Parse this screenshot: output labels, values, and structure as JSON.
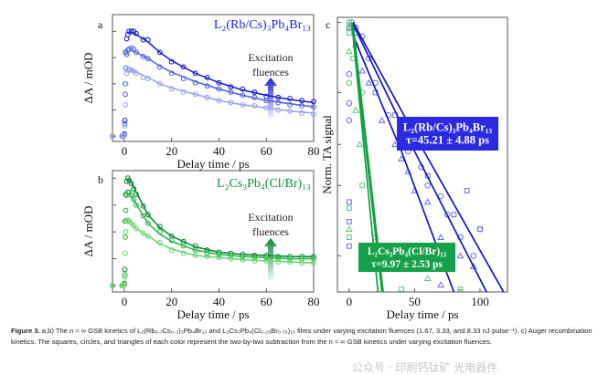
{
  "chart_data": [
    {
      "panel_label": "a",
      "type": "scatter",
      "title": "L₂(Rb/Cs)₃Pb₄Br₁₃",
      "xlabel": "Delay time / ps",
      "ylabel": "ΔA / mOD",
      "xlim": [
        -5,
        80
      ],
      "ylim": [
        -0.05,
        1.16
      ],
      "xticks": [
        0,
        20,
        40,
        60,
        80
      ],
      "annotation": [
        "Excitation",
        "fluences"
      ],
      "annotation_arrow": "up",
      "x": [
        -5,
        -1,
        -0.5,
        0,
        0.2,
        0.4,
        0.6,
        1,
        1.5,
        2,
        3,
        4,
        5,
        8,
        10,
        15,
        20,
        25,
        30,
        35,
        40,
        45,
        50,
        55,
        60,
        65,
        70,
        75,
        80
      ],
      "fit_x": [
        2,
        5,
        10,
        15,
        20,
        30,
        40,
        50,
        60,
        70,
        80
      ],
      "series": [
        {
          "color": "#1c22d6",
          "values": [
            0,
            0,
            0,
            0.02,
            0.15,
            0.5,
            0.8,
            0.93,
            0.97,
            1.0,
            1.0,
            1.0,
            0.98,
            0.92,
            0.92,
            0.8,
            0.71,
            0.66,
            0.6,
            0.56,
            0.51,
            0.47,
            0.45,
            0.42,
            0.38,
            0.37,
            0.36,
            0.34,
            0.33
          ],
          "fit": [
            1.0,
            0.97,
            0.9,
            0.8,
            0.72,
            0.6,
            0.51,
            0.44,
            0.39,
            0.35,
            0.32
          ]
        },
        {
          "color": "#5566e6",
          "values": [
            0,
            0,
            0,
            0.01,
            0.12,
            0.4,
            0.65,
            0.78,
            0.82,
            0.83,
            0.84,
            0.83,
            0.8,
            0.76,
            0.74,
            0.66,
            0.6,
            0.55,
            0.51,
            0.48,
            0.45,
            0.42,
            0.39,
            0.37,
            0.34,
            0.32,
            0.3,
            0.29,
            0.28
          ],
          "fit": [
            0.83,
            0.8,
            0.74,
            0.67,
            0.61,
            0.52,
            0.45,
            0.39,
            0.34,
            0.31,
            0.28
          ]
        },
        {
          "color": "#98a4ee",
          "values": [
            0,
            0,
            0,
            0.01,
            0.1,
            0.3,
            0.5,
            0.6,
            0.63,
            0.64,
            0.63,
            0.62,
            0.6,
            0.56,
            0.55,
            0.5,
            0.45,
            0.42,
            0.4,
            0.37,
            0.34,
            0.32,
            0.3,
            0.29,
            0.27,
            0.25,
            0.24,
            0.22,
            0.21
          ],
          "fit": [
            0.64,
            0.61,
            0.56,
            0.5,
            0.46,
            0.4,
            0.34,
            0.3,
            0.27,
            0.24,
            0.22
          ]
        }
      ]
    },
    {
      "panel_label": "b",
      "type": "scatter",
      "title": "L₂Cs₃Pb₄(Cl/Br)₁₃",
      "xlabel": "Delay time / ps",
      "ylabel": "ΔA / mOD",
      "xlim": [
        -5,
        80
      ],
      "ylim": [
        -0.06,
        1.07
      ],
      "xticks": [
        0,
        20,
        40,
        60,
        80
      ],
      "annotation": [
        "Excitation",
        "fluences"
      ],
      "annotation_arrow": "up",
      "x": [
        -5,
        -1,
        -0.5,
        0,
        0.2,
        0.4,
        0.6,
        1,
        1.5,
        2,
        3,
        4,
        5,
        8,
        10,
        15,
        20,
        25,
        30,
        35,
        40,
        45,
        50,
        55,
        60,
        65,
        70,
        75,
        80
      ],
      "fit_x": [
        2,
        5,
        10,
        15,
        20,
        30,
        40,
        50,
        60,
        70,
        80
      ],
      "series": [
        {
          "color": "#0c8a3c",
          "values": [
            0,
            0,
            0,
            0.02,
            0.15,
            0.6,
            0.85,
            0.97,
            1.0,
            0.98,
            0.95,
            0.9,
            0.85,
            0.74,
            0.66,
            0.55,
            0.46,
            0.41,
            0.37,
            0.33,
            0.31,
            0.3,
            0.29,
            0.28,
            0.28,
            0.27,
            0.27,
            0.27,
            0.27
          ],
          "fit": [
            1.0,
            0.87,
            0.66,
            0.54,
            0.46,
            0.36,
            0.31,
            0.29,
            0.28,
            0.27,
            0.27
          ]
        },
        {
          "color": "#2cb84c",
          "values": [
            0,
            0,
            0,
            0.01,
            0.1,
            0.45,
            0.7,
            0.84,
            0.87,
            0.87,
            0.84,
            0.8,
            0.75,
            0.65,
            0.58,
            0.5,
            0.42,
            0.37,
            0.33,
            0.3,
            0.29,
            0.28,
            0.27,
            0.26,
            0.26,
            0.25,
            0.25,
            0.25,
            0.25
          ],
          "fit": [
            0.87,
            0.76,
            0.58,
            0.48,
            0.41,
            0.33,
            0.29,
            0.27,
            0.26,
            0.25,
            0.25
          ]
        },
        {
          "color": "#6cd870",
          "values": [
            0,
            0,
            0,
            0.01,
            0.08,
            0.3,
            0.5,
            0.6,
            0.61,
            0.6,
            0.58,
            0.56,
            0.53,
            0.49,
            0.46,
            0.4,
            0.33,
            0.3,
            0.28,
            0.27,
            0.26,
            0.25,
            0.24,
            0.23,
            0.23,
            0.22,
            0.22,
            0.21,
            0.21
          ],
          "fit": [
            0.61,
            0.53,
            0.46,
            0.39,
            0.34,
            0.28,
            0.26,
            0.24,
            0.23,
            0.22,
            0.21
          ]
        }
      ]
    },
    {
      "panel_label": "c",
      "type": "scatter",
      "xlabel": "Delay time / ps",
      "ylabel": "Norm. TA signal",
      "xlim": [
        -9,
        121
      ],
      "ylim": [
        0.07,
        1.05
      ],
      "yscale": "log",
      "xticks": [
        0,
        50,
        100
      ],
      "legend_boxes": [
        {
          "title": "L₂(Rb/Cs)₃Pb₄Br₁₃",
          "tau": "τ=45.21 ± 4.88 ps",
          "color": "#2a2ae0"
        },
        {
          "title": "L₂Cs₃Pb₄(Cl/Br)₁₃",
          "tau": "τ=9.97 ± 2.53 ps",
          "color": "#16a04a"
        }
      ],
      "series": [
        {
          "marker": "circle",
          "color": "#6a6ae8",
          "points": [
            [
              2,
              1.0
            ],
            [
              5,
              0.95
            ],
            [
              10,
              0.87
            ],
            [
              15,
              0.7
            ],
            [
              20,
              0.55
            ],
            [
              30,
              0.4
            ],
            [
              40,
              0.3
            ],
            [
              45,
              0.28
            ],
            [
              55,
              0.24
            ],
            [
              60,
              0.2
            ],
            [
              70,
              0.18
            ],
            [
              75,
              0.15
            ],
            [
              85,
              0.12
            ],
            [
              95,
              0.1
            ],
            [
              100,
              0.13
            ],
            [
              0,
              0.6
            ],
            [
              0,
              0.45
            ],
            [
              0,
              0.38
            ]
          ]
        },
        {
          "marker": "square",
          "color": "#6a6ae8",
          "points": [
            [
              5,
              0.9
            ],
            [
              20,
              0.5
            ],
            [
              35,
              0.4
            ],
            [
              40,
              0.33
            ],
            [
              50,
              0.3
            ],
            [
              60,
              0.22
            ],
            [
              70,
              0.3
            ],
            [
              80,
              0.15
            ],
            [
              90,
              0.19
            ],
            [
              100,
              0.13
            ],
            [
              0,
              0.17
            ],
            [
              0,
              0.14
            ],
            [
              0,
              0.11
            ],
            [
              85,
              0.07
            ]
          ]
        },
        {
          "marker": "triangle",
          "color": "#6a6ae8",
          "points": [
            [
              0,
              0.95
            ],
            [
              5,
              0.8
            ],
            [
              10,
              0.62
            ],
            [
              15,
              0.55
            ],
            [
              25,
              0.38
            ],
            [
              35,
              0.3
            ],
            [
              40,
              0.26
            ],
            [
              45,
              0.23
            ],
            [
              50,
              0.19
            ],
            [
              60,
              0.17
            ],
            [
              70,
              0.12
            ],
            [
              85,
              0.1
            ],
            [
              95,
              0.09
            ],
            [
              70,
              0.075
            ]
          ]
        },
        {
          "marker": "circle",
          "color": "#5cc87a",
          "points": [
            [
              0,
              1.0
            ],
            [
              2,
              0.95
            ],
            [
              5,
              0.8
            ],
            [
              10,
              0.5
            ],
            [
              20,
              0.12
            ],
            [
              25,
              0.11
            ],
            [
              30,
              0.1
            ],
            [
              0,
              0.55
            ]
          ]
        },
        {
          "marker": "square",
          "color": "#5cc87a",
          "points": [
            [
              0,
              0.9
            ],
            [
              3,
              0.7
            ],
            [
              10,
              0.2
            ],
            [
              0,
              0.16
            ],
            [
              0,
              0.12
            ],
            [
              40,
              0.072
            ],
            [
              85,
              0.072
            ]
          ]
        },
        {
          "marker": "triangle",
          "color": "#5cc87a",
          "points": [
            [
              0,
              0.98
            ],
            [
              0,
              0.75
            ],
            [
              5,
              0.42
            ],
            [
              8,
              0.3
            ],
            [
              20,
              0.1
            ],
            [
              60,
              0.08
            ],
            [
              0,
              0.13
            ]
          ]
        }
      ],
      "fits": [
        {
          "color": "#1414c8",
          "points": [
            [
              3,
              1.0
            ],
            [
              50,
              0.33
            ],
            [
              118,
              0.07
            ]
          ]
        },
        {
          "color": "#1414c8",
          "points": [
            [
              3,
              0.98
            ],
            [
              50,
              0.28
            ],
            [
              105,
              0.07
            ]
          ]
        },
        {
          "color": "#1414c8",
          "points": [
            [
              4,
              0.85
            ],
            [
              40,
              0.28
            ],
            [
              80,
              0.07
            ]
          ]
        },
        {
          "color": "#10a040",
          "points": [
            [
              2,
              1.0
            ],
            [
              22,
              0.07
            ]
          ]
        },
        {
          "color": "#10a040",
          "points": [
            [
              2,
              1.0
            ],
            [
              25,
              0.07
            ]
          ]
        },
        {
          "color": "#10a040",
          "points": [
            [
              3,
              0.97
            ],
            [
              26,
              0.07
            ]
          ]
        }
      ]
    }
  ],
  "caption": {
    "label": "Figure 3.",
    "text": " a,b) The n ≈ ∞ GSB kinetics of L₂(Rb₀.₇Cs₀.₃)₃Pb₄Br₁₃ and L₂Cs₃Pb₄(Cl₀.₂₅Br₀.₇₅)₁₃ films under varying excitation fluences (1.67, 3.33, and 8.33 nJ·pulse⁻¹). c) Auger recombination kinetics. The squares, circles, and triangles of each color represent the two-by-two subtraction from the n ≈ ∞ GSB kinetics under varying excitation fluences."
  },
  "watermark": "公众号 · 印刷钙钛矿 光电器件"
}
